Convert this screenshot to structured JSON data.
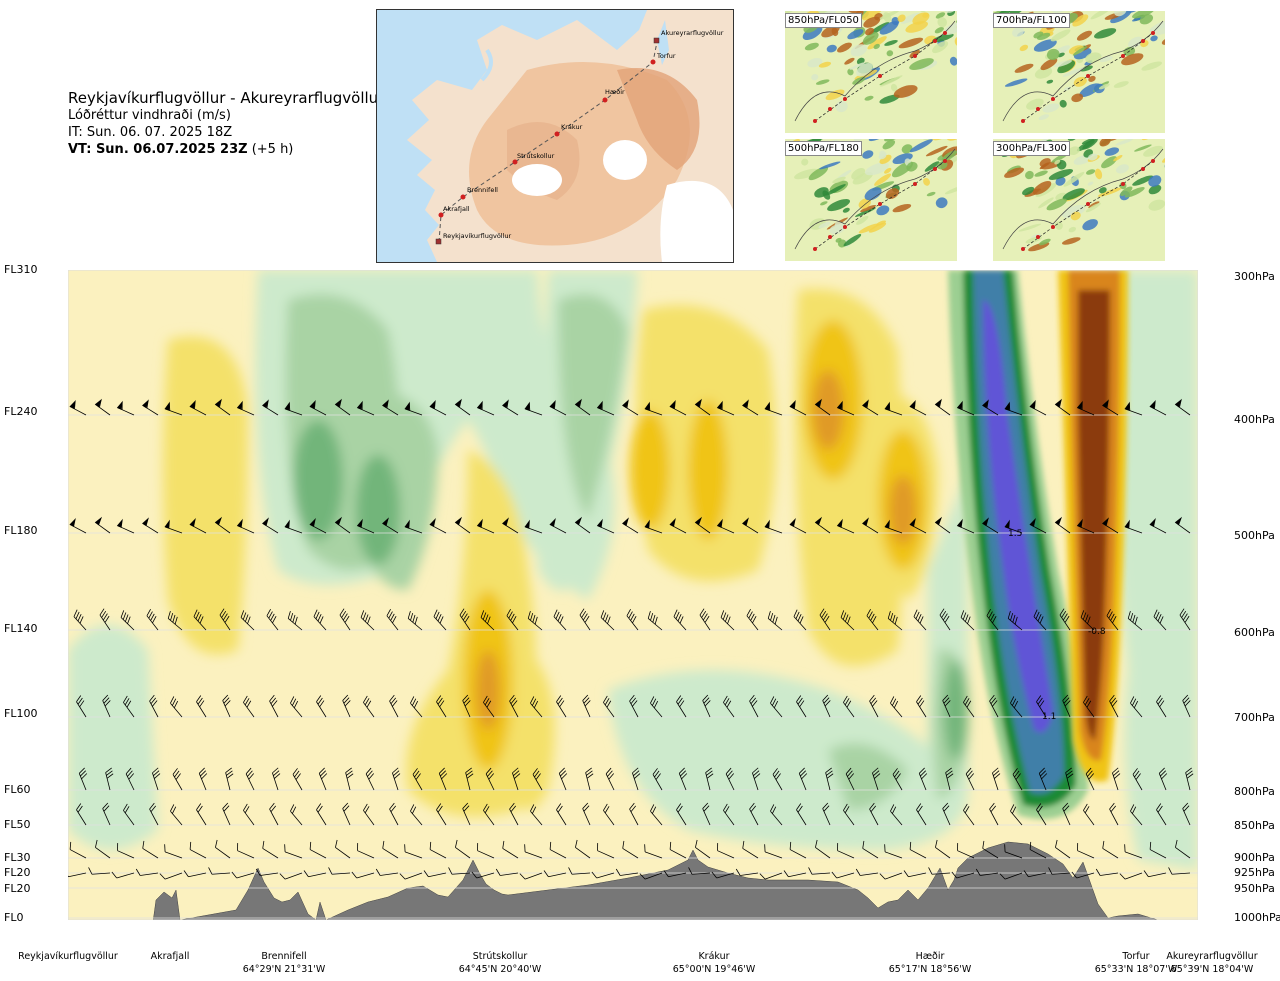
{
  "title": {
    "route": "Reykjavíkurflugvöllur - Akureyrarflugvöllur",
    "parameter": "Lóðréttur vindhraði (m/s)",
    "initial_time": "IT: Sun. 06. 07. 2025 18Z",
    "valid_time": "VT: Sun. 06.07.2025 23Z",
    "lead": "(+5 h)"
  },
  "inset_map": {
    "stations": [
      {
        "name": "Akureyrarflugvöllur",
        "square": true
      },
      {
        "name": "Torfur",
        "square": false
      },
      {
        "name": "Hæðir",
        "square": false
      },
      {
        "name": "Krákur",
        "square": false
      },
      {
        "name": "Strútskollur",
        "square": false
      },
      {
        "name": "Brennifell",
        "square": false
      },
      {
        "name": "Akrafjall",
        "square": false
      },
      {
        "name": "Reykjavíkurflugvöllur",
        "square": true
      }
    ]
  },
  "level_panels": [
    {
      "label": "850hPa/FL050"
    },
    {
      "label": "700hPa/FL100"
    },
    {
      "label": "500hPa/FL180"
    },
    {
      "label": "300hPa/FL300"
    }
  ],
  "flight_levels": [
    "FL310",
    "FL240",
    "FL180",
    "FL140",
    "FL100",
    "FL60",
    "FL50",
    "FL30",
    "FL20",
    "FL20",
    "FL0"
  ],
  "pressure_levels": [
    "300hPa",
    "400hPa",
    "500hPa",
    "600hPa",
    "700hPa",
    "800hPa",
    "850hPa",
    "900hPa",
    "925hPa",
    "950hPa",
    "1000hPa"
  ],
  "contour_labels": [
    "1.5",
    "-0.8",
    "1.1"
  ],
  "route_points": [
    {
      "name": "Reykjavíkurflugvöllur",
      "coord": ""
    },
    {
      "name": "Akrafjall",
      "coord": ""
    },
    {
      "name": "Brennifell",
      "coord": "64°29'N 21°31'W"
    },
    {
      "name": "Strútskollur",
      "coord": "64°45'N 20°40'W"
    },
    {
      "name": "Krákur",
      "coord": "65°00'N 19°46'W"
    },
    {
      "name": "Hæðir",
      "coord": "65°17'N 18°56'W"
    },
    {
      "name": "Torfur",
      "coord": "65°33'N 18°07'W"
    },
    {
      "name": "Akureyrarflugvöllur",
      "coord": "65°39'N 18°04'W"
    }
  ],
  "colors": {
    "strong_down": "#8b3a0f",
    "down": "#d9851c",
    "weak_down": "#f0c419",
    "neutral": "#fff6c8",
    "weak_up": "#cdeacc",
    "up": "#4f9e5a",
    "strong_up": "#0a6e1e",
    "very_strong_up": "#5a55d6",
    "terrain": "#777777"
  }
}
